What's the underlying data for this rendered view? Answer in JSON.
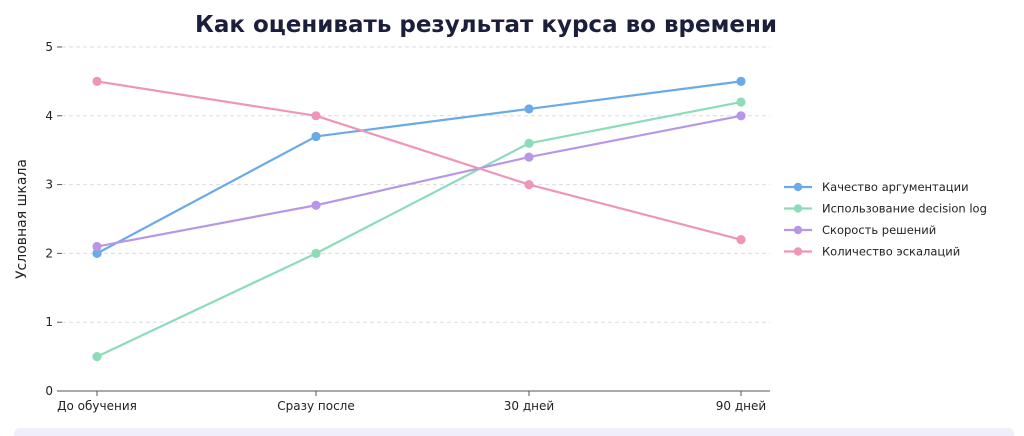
{
  "chart_data": {
    "type": "line",
    "title": "Как оценивать результат курса во времени",
    "xlabel": "",
    "ylabel": "Условная шкала",
    "categories": [
      "До обучения",
      "Сразу после",
      "30 дней",
      "90 дней"
    ],
    "ylim": [
      0,
      5
    ],
    "yticks": [
      0,
      1,
      2,
      3,
      4,
      5
    ],
    "grid": true,
    "legend_position": "right",
    "series": [
      {
        "name": "Качество аргументации",
        "values": [
          2.0,
          3.7,
          4.1,
          4.5
        ],
        "color": "#6aaae8"
      },
      {
        "name": "Использование decision log",
        "values": [
          0.5,
          2.0,
          3.6,
          4.2
        ],
        "color": "#8ddcb9"
      },
      {
        "name": "Скорость решений",
        "values": [
          2.1,
          2.7,
          3.4,
          4.0
        ],
        "color": "#b898e6"
      },
      {
        "name": "Количество эскалаций",
        "values": [
          4.5,
          4.0,
          3.0,
          2.2
        ],
        "color": "#ee96b8"
      }
    ]
  }
}
